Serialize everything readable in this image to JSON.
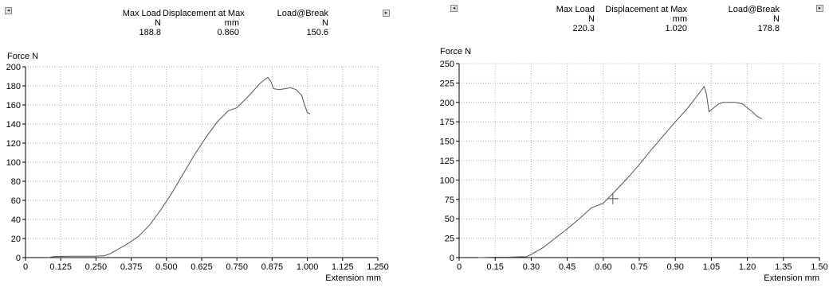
{
  "panels": [
    {
      "results": {
        "headers": [
          "Max Load",
          "Displacement at Max",
          "Load@Break"
        ],
        "units": [
          "N",
          "mm",
          "N"
        ],
        "values": [
          "188.8",
          "0.860",
          "150.6"
        ]
      },
      "nav": {
        "left_icon": "chevron-left-icon",
        "right_icon": "chevron-right-icon",
        "left_glyph": "◂",
        "right_glyph": "▸"
      },
      "ylabel": "Force N",
      "xlabel": "Extension mm"
    },
    {
      "results": {
        "headers": [
          "Max Load",
          "Displacement at Max",
          "Load@Break"
        ],
        "units": [
          "N",
          "mm",
          "N"
        ],
        "values": [
          "220.3",
          "1.020",
          "178.8"
        ]
      },
      "nav": {
        "left_icon": "chevron-left-icon",
        "right_icon": "chevron-right-icon",
        "left_glyph": "◂",
        "right_glyph": "▸"
      },
      "ylabel": "Force N",
      "xlabel": "Extension mm"
    }
  ],
  "chart_data": [
    {
      "type": "line",
      "title": "",
      "xlabel": "Extension mm",
      "ylabel": "Force N",
      "xlim": [
        0,
        1.25
      ],
      "ylim": [
        0,
        200
      ],
      "xticks": [
        "0",
        "0.125",
        "0.250",
        "0.375",
        "0.500",
        "0.625",
        "0.750",
        "0.875",
        "1.000",
        "1.125",
        "1.250"
      ],
      "yticks": [
        "0",
        "20",
        "40",
        "60",
        "80",
        "100",
        "120",
        "140",
        "160",
        "180",
        "200"
      ],
      "grid": true,
      "line_color": "#555555",
      "series": [
        {
          "x": [
            0.08,
            0.1,
            0.15,
            0.2,
            0.25,
            0.28,
            0.3,
            0.33,
            0.36,
            0.4,
            0.44,
            0.48,
            0.52,
            0.56,
            0.6,
            0.64,
            0.68,
            0.72,
            0.75,
            0.77,
            0.8,
            0.83,
            0.85,
            0.86,
            0.87,
            0.88,
            0.9,
            0.92,
            0.94,
            0.96,
            0.98,
            0.99,
            1.0,
            1.01
          ],
          "y": [
            0,
            1,
            1.5,
            1.5,
            1.5,
            2,
            4,
            9,
            14,
            22,
            34,
            50,
            68,
            88,
            108,
            126,
            142,
            154,
            157,
            163,
            172,
            182,
            187,
            188.8,
            185,
            177,
            176,
            177,
            178,
            176,
            170,
            160,
            152,
            150.6
          ]
        }
      ]
    },
    {
      "type": "line",
      "title": "",
      "xlabel": "Extension mm",
      "ylabel": "Force N",
      "xlim": [
        0,
        1.5
      ],
      "ylim": [
        0,
        250
      ],
      "xticks": [
        "0",
        "0.15",
        "0.30",
        "0.45",
        "0.60",
        "0.75",
        "0.90",
        "1.05",
        "1.20",
        "1.35",
        "1.50"
      ],
      "yticks": [
        "0",
        "25",
        "50",
        "75",
        "100",
        "125",
        "150",
        "175",
        "200",
        "225",
        "250"
      ],
      "grid": true,
      "line_color": "#555555",
      "marker": {
        "x": 0.64,
        "y": 76
      },
      "series": [
        {
          "x": [
            0.08,
            0.15,
            0.2,
            0.26,
            0.28,
            0.3,
            0.35,
            0.4,
            0.45,
            0.5,
            0.55,
            0.6,
            0.65,
            0.7,
            0.75,
            0.8,
            0.85,
            0.9,
            0.95,
            1.0,
            1.02,
            1.03,
            1.04,
            1.06,
            1.08,
            1.1,
            1.15,
            1.18,
            1.2,
            1.22,
            1.24,
            1.26
          ],
          "y": [
            0,
            0.5,
            0.5,
            1,
            1,
            4,
            13,
            25,
            37,
            50,
            64,
            70,
            86,
            102,
            120,
            139,
            157,
            175,
            192,
            212,
            220.3,
            210,
            188,
            193,
            198,
            200,
            200,
            198,
            193,
            188,
            182,
            178.8
          ]
        }
      ]
    }
  ]
}
